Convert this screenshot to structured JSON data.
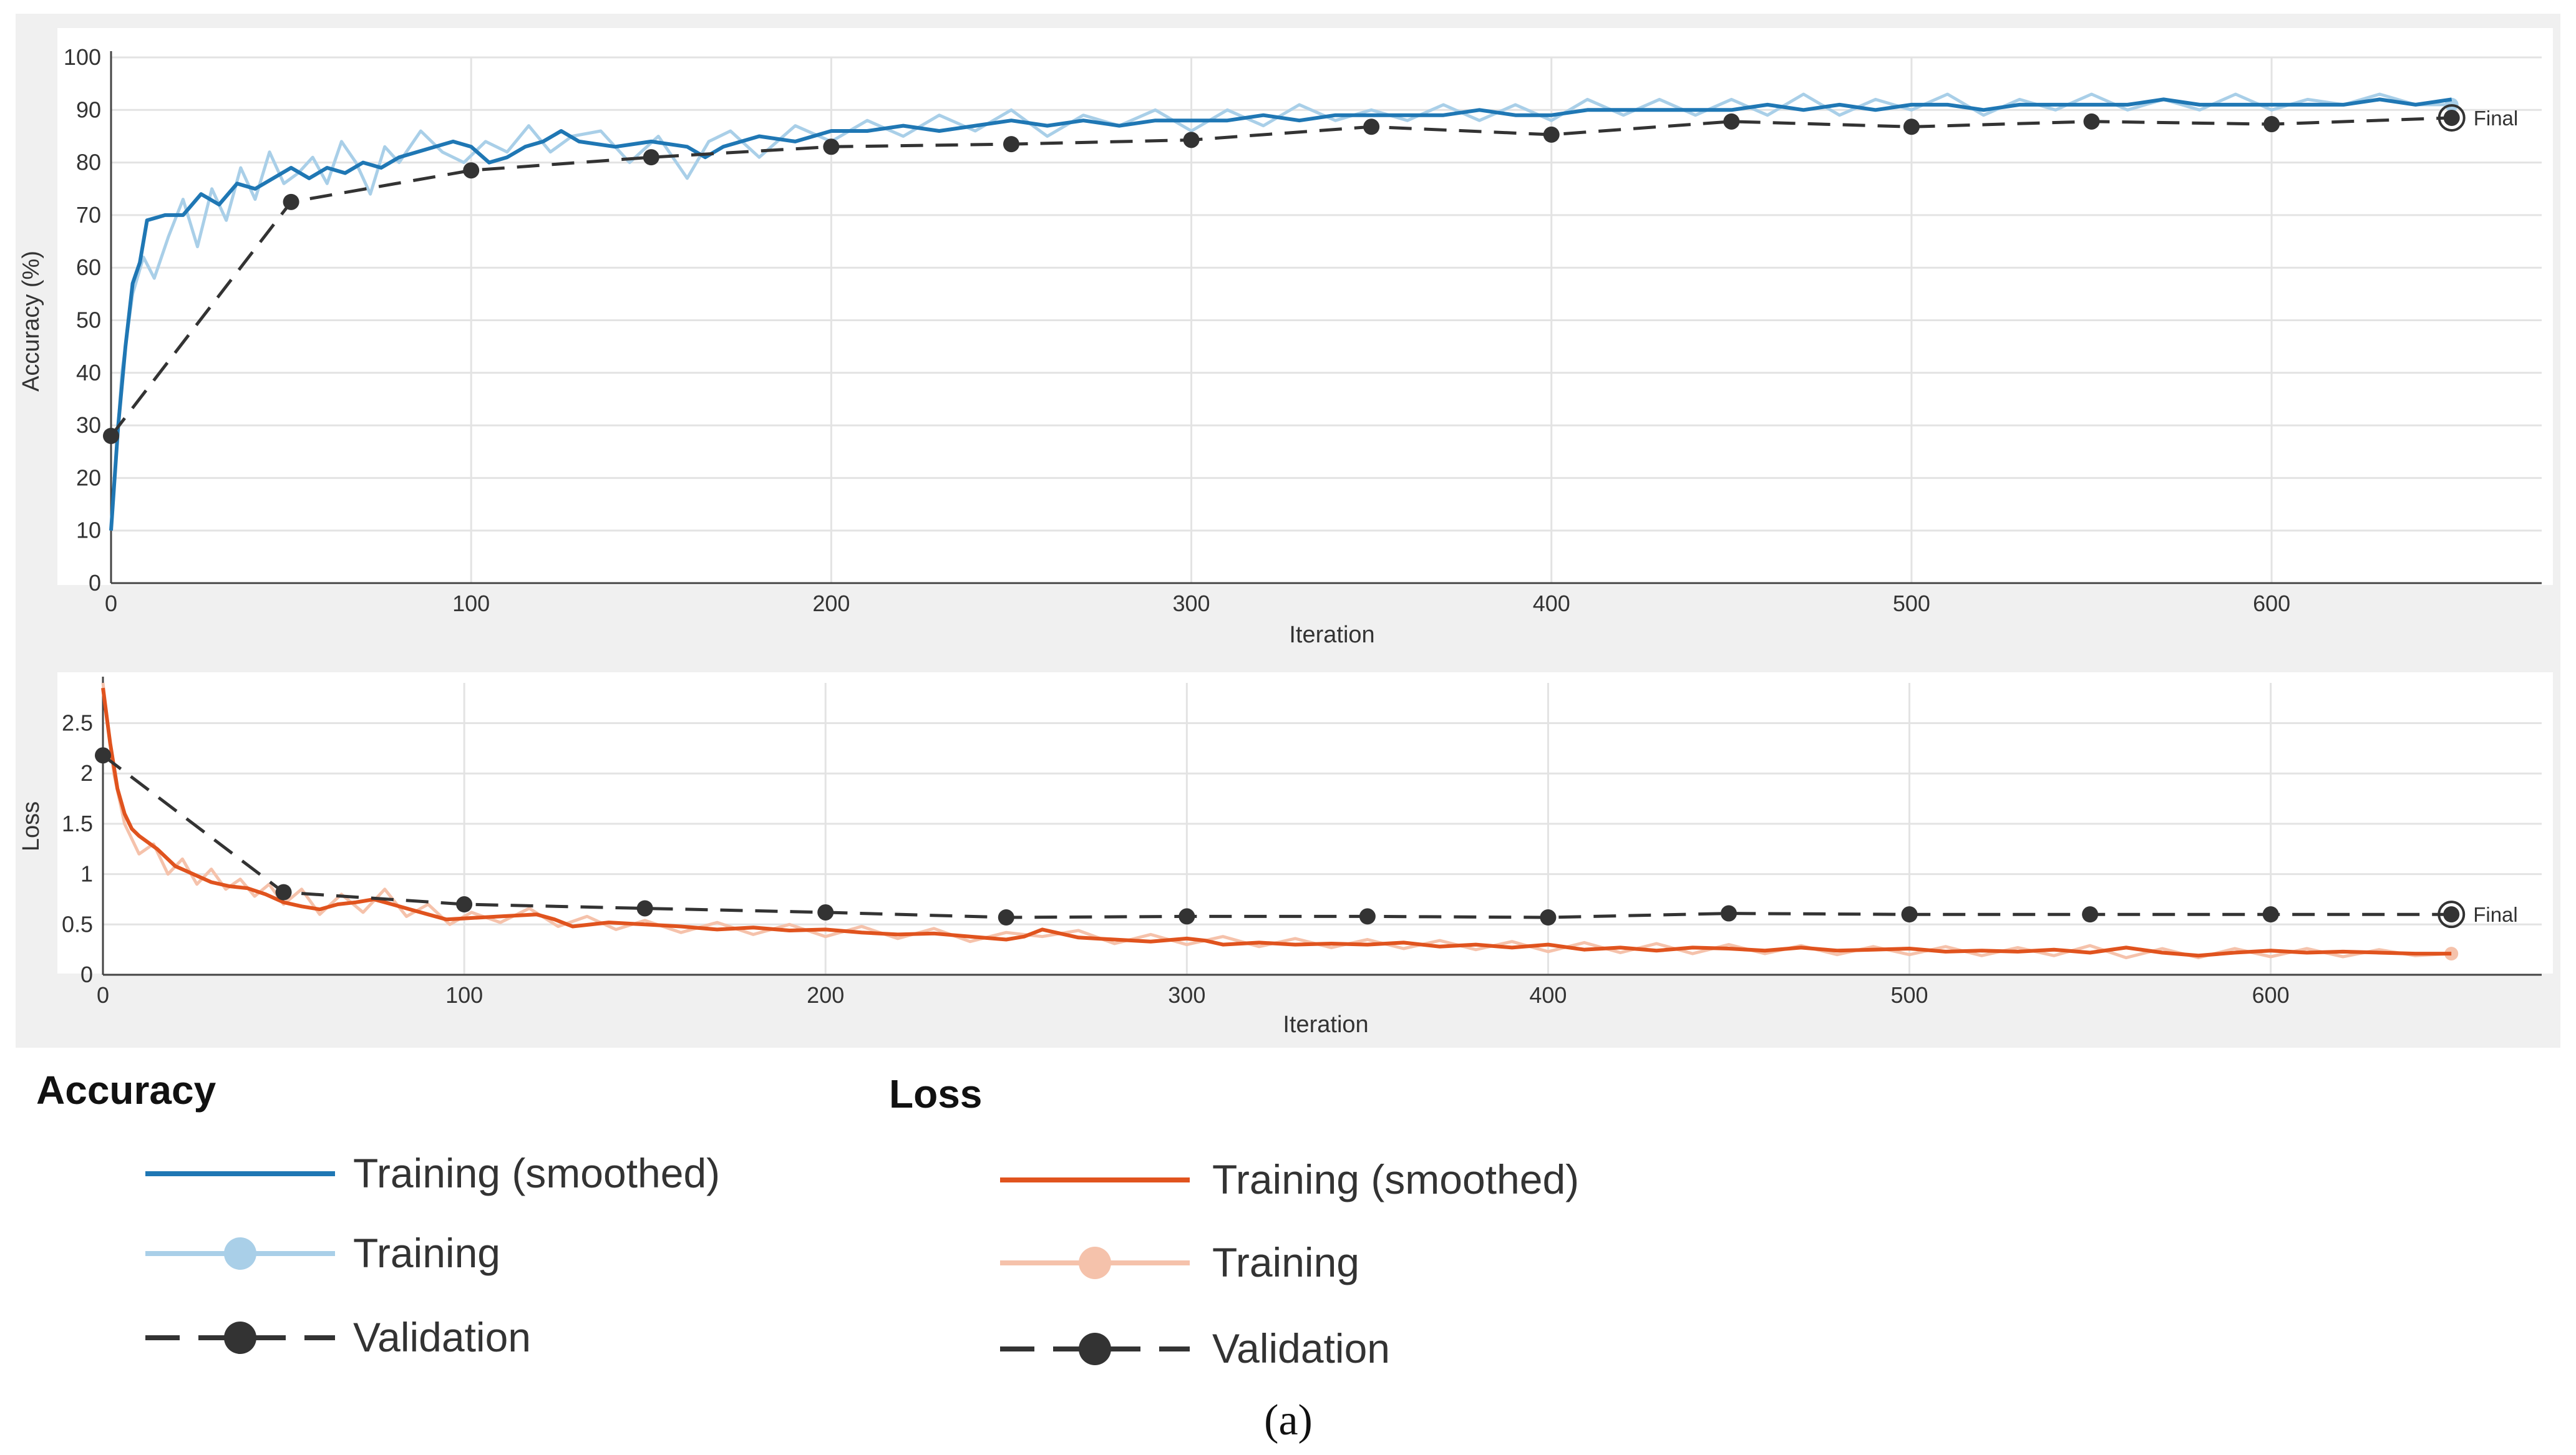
{
  "chart_data": [
    {
      "type": "line",
      "ylabel": "Accuracy (%)",
      "xlabel": "Iteration",
      "xlim": [
        0,
        675
      ],
      "ylim": [
        0,
        100
      ],
      "xticks": [
        "0",
        "100",
        "200",
        "300",
        "400",
        "500",
        "600"
      ],
      "yticks": [
        "0",
        "10",
        "20",
        "30",
        "40",
        "50",
        "60",
        "70",
        "80",
        "90",
        "100"
      ],
      "grid": true,
      "final_label": "Final",
      "series": [
        {
          "name": "Training (smoothed)",
          "color": "#1f77b4",
          "style": "solid",
          "x": [
            0,
            2,
            4,
            6,
            8,
            10,
            15,
            20,
            25,
            30,
            35,
            40,
            45,
            50,
            55,
            60,
            65,
            70,
            75,
            80,
            85,
            90,
            95,
            100,
            105,
            110,
            115,
            120,
            125,
            130,
            140,
            150,
            160,
            165,
            170,
            180,
            190,
            200,
            210,
            220,
            230,
            240,
            250,
            260,
            270,
            280,
            290,
            300,
            310,
            320,
            330,
            340,
            350,
            360,
            370,
            380,
            390,
            400,
            410,
            420,
            430,
            440,
            450,
            460,
            470,
            480,
            490,
            500,
            510,
            520,
            530,
            540,
            550,
            560,
            570,
            580,
            590,
            600,
            610,
            620,
            630,
            640,
            650
          ],
          "values": [
            10,
            30,
            45,
            57,
            61,
            69,
            70,
            70,
            74,
            72,
            76,
            75,
            77,
            79,
            77,
            79,
            78,
            80,
            79,
            81,
            82,
            83,
            84,
            83,
            80,
            81,
            83,
            84,
            86,
            84,
            83,
            84,
            83,
            81,
            83,
            85,
            84,
            86,
            86,
            87,
            86,
            87,
            88,
            87,
            88,
            87,
            88,
            88,
            88,
            89,
            88,
            89,
            89,
            89,
            89,
            90,
            89,
            89,
            90,
            90,
            90,
            90,
            90,
            91,
            90,
            91,
            90,
            91,
            91,
            90,
            91,
            91,
            91,
            91,
            92,
            91,
            91,
            91,
            91,
            91,
            92,
            91,
            92
          ]
        },
        {
          "name": "Training",
          "color": "#a9cfe8",
          "style": "solid",
          "x": [
            0,
            3,
            6,
            9,
            12,
            16,
            20,
            24,
            28,
            32,
            36,
            40,
            44,
            48,
            52,
            56,
            60,
            64,
            68,
            72,
            76,
            80,
            86,
            92,
            98,
            104,
            110,
            116,
            122,
            128,
            136,
            144,
            152,
            160,
            166,
            172,
            180,
            190,
            200,
            210,
            220,
            230,
            240,
            250,
            260,
            270,
            280,
            290,
            300,
            310,
            320,
            330,
            340,
            350,
            360,
            370,
            380,
            390,
            400,
            410,
            420,
            430,
            440,
            450,
            460,
            470,
            480,
            490,
            500,
            510,
            520,
            530,
            540,
            550,
            560,
            570,
            580,
            590,
            600,
            610,
            620,
            630,
            640,
            650
          ],
          "values": [
            10,
            40,
            55,
            62,
            58,
            66,
            73,
            64,
            75,
            69,
            79,
            73,
            82,
            76,
            78,
            81,
            76,
            84,
            80,
            74,
            83,
            80,
            86,
            82,
            80,
            84,
            82,
            87,
            82,
            85,
            86,
            80,
            85,
            77,
            84,
            86,
            81,
            87,
            84,
            88,
            85,
            89,
            86,
            90,
            85,
            89,
            87,
            90,
            86,
            90,
            87,
            91,
            88,
            90,
            88,
            91,
            88,
            91,
            88,
            92,
            89,
            92,
            89,
            92,
            89,
            93,
            89,
            92,
            90,
            93,
            89,
            92,
            90,
            93,
            90,
            92,
            90,
            93,
            90,
            92,
            91,
            93,
            91,
            91
          ]
        },
        {
          "name": "Validation",
          "color": "#333333",
          "style": "dashed-markers",
          "x": [
            0,
            50,
            100,
            150,
            200,
            250,
            300,
            350,
            400,
            450,
            500,
            550,
            600,
            650
          ],
          "values": [
            28,
            72.5,
            78.5,
            81,
            83,
            83.5,
            84.3,
            86.8,
            85.3,
            87.8,
            86.8,
            87.8,
            87.3,
            88.5
          ]
        }
      ]
    },
    {
      "type": "line",
      "ylabel": "Loss",
      "xlabel": "Iteration",
      "xlim": [
        0,
        675
      ],
      "ylim": [
        0,
        2.9
      ],
      "xticks": [
        "0",
        "100",
        "200",
        "300",
        "400",
        "500",
        "600"
      ],
      "yticks": [
        "0",
        "0.5",
        "1",
        "1.5",
        "2",
        "2.5"
      ],
      "grid": true,
      "final_label": "Final",
      "series": [
        {
          "name": "Training (smoothed)",
          "color": "#e0531e",
          "style": "solid",
          "x": [
            0,
            2,
            4,
            6,
            8,
            10,
            15,
            20,
            25,
            30,
            35,
            40,
            45,
            50,
            55,
            60,
            65,
            70,
            75,
            80,
            85,
            90,
            95,
            100,
            110,
            120,
            125,
            130,
            140,
            150,
            160,
            170,
            180,
            190,
            200,
            210,
            220,
            230,
            240,
            250,
            255,
            260,
            270,
            280,
            290,
            300,
            305,
            310,
            320,
            330,
            340,
            350,
            360,
            370,
            380,
            390,
            400,
            410,
            420,
            430,
            440,
            450,
            460,
            470,
            480,
            490,
            500,
            510,
            520,
            530,
            540,
            550,
            560,
            570,
            580,
            590,
            600,
            610,
            620,
            630,
            640,
            650
          ],
          "values": [
            2.85,
            2.3,
            1.85,
            1.6,
            1.45,
            1.38,
            1.25,
            1.08,
            1.0,
            0.92,
            0.88,
            0.86,
            0.8,
            0.72,
            0.68,
            0.65,
            0.7,
            0.72,
            0.75,
            0.7,
            0.65,
            0.6,
            0.55,
            0.56,
            0.58,
            0.6,
            0.55,
            0.48,
            0.52,
            0.5,
            0.48,
            0.45,
            0.47,
            0.44,
            0.45,
            0.42,
            0.4,
            0.41,
            0.38,
            0.35,
            0.38,
            0.45,
            0.37,
            0.35,
            0.33,
            0.36,
            0.34,
            0.3,
            0.32,
            0.3,
            0.31,
            0.3,
            0.32,
            0.28,
            0.3,
            0.27,
            0.3,
            0.25,
            0.27,
            0.24,
            0.27,
            0.26,
            0.24,
            0.27,
            0.24,
            0.25,
            0.26,
            0.23,
            0.24,
            0.23,
            0.25,
            0.22,
            0.27,
            0.22,
            0.19,
            0.22,
            0.24,
            0.22,
            0.23,
            0.22,
            0.21,
            0.21
          ]
        },
        {
          "name": "Training",
          "color": "#f5c2ab",
          "style": "solid",
          "x": [
            0,
            3,
            6,
            10,
            14,
            18,
            22,
            26,
            30,
            34,
            38,
            42,
            46,
            50,
            55,
            60,
            66,
            72,
            78,
            84,
            90,
            96,
            102,
            110,
            118,
            126,
            134,
            142,
            150,
            160,
            170,
            180,
            190,
            200,
            210,
            220,
            230,
            240,
            250,
            260,
            270,
            280,
            290,
            300,
            310,
            320,
            330,
            340,
            350,
            360,
            370,
            380,
            390,
            400,
            410,
            420,
            430,
            440,
            450,
            460,
            470,
            480,
            490,
            500,
            510,
            520,
            530,
            540,
            550,
            560,
            570,
            580,
            590,
            600,
            610,
            620,
            630,
            640,
            650
          ],
          "values": [
            2.9,
            2.0,
            1.5,
            1.2,
            1.3,
            1.0,
            1.15,
            0.9,
            1.05,
            0.85,
            0.95,
            0.78,
            0.9,
            0.7,
            0.85,
            0.6,
            0.8,
            0.62,
            0.85,
            0.58,
            0.7,
            0.5,
            0.62,
            0.52,
            0.66,
            0.48,
            0.58,
            0.45,
            0.54,
            0.42,
            0.52,
            0.4,
            0.5,
            0.38,
            0.48,
            0.36,
            0.46,
            0.33,
            0.42,
            0.38,
            0.44,
            0.31,
            0.4,
            0.3,
            0.38,
            0.28,
            0.36,
            0.27,
            0.35,
            0.26,
            0.34,
            0.25,
            0.33,
            0.23,
            0.32,
            0.22,
            0.31,
            0.21,
            0.3,
            0.21,
            0.29,
            0.2,
            0.28,
            0.2,
            0.28,
            0.19,
            0.27,
            0.19,
            0.29,
            0.17,
            0.26,
            0.17,
            0.26,
            0.18,
            0.26,
            0.18,
            0.25,
            0.19,
            0.21
          ]
        },
        {
          "name": "Validation",
          "color": "#333333",
          "style": "dashed-markers",
          "x": [
            0,
            50,
            100,
            150,
            200,
            250,
            300,
            350,
            400,
            450,
            500,
            550,
            600,
            650
          ],
          "values": [
            2.18,
            0.82,
            0.7,
            0.66,
            0.62,
            0.57,
            0.58,
            0.58,
            0.57,
            0.61,
            0.6,
            0.6,
            0.6,
            0.6
          ]
        }
      ]
    }
  ],
  "legend": {
    "accuracy": {
      "title": "Accuracy",
      "items": [
        "Training (smoothed)",
        "Training",
        "Validation"
      ]
    },
    "loss": {
      "title": "Loss",
      "items": [
        "Training (smoothed)",
        "Training",
        "Validation"
      ]
    }
  },
  "caption": "(a)"
}
